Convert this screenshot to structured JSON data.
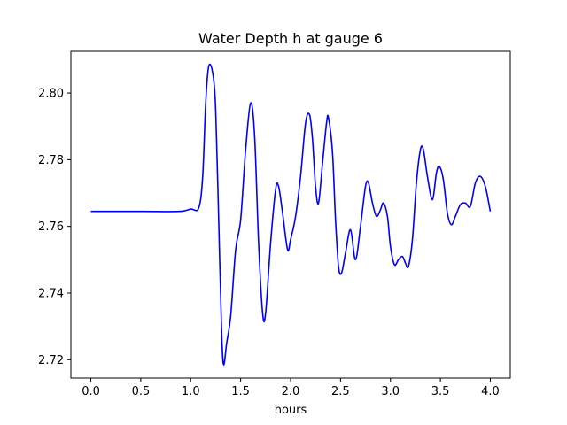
{
  "chart_data": {
    "type": "line",
    "title": "Water Depth h at gauge 6",
    "xlabel": "hours",
    "ylabel": "",
    "xlim": [
      -0.2,
      4.2
    ],
    "ylim": [
      2.7145,
      2.8125
    ],
    "xticks": [
      0.0,
      0.5,
      1.0,
      1.5,
      2.0,
      2.5,
      3.0,
      3.5,
      4.0
    ],
    "xtick_labels": [
      "0.0",
      "0.5",
      "1.0",
      "1.5",
      "2.0",
      "2.5",
      "3.0",
      "3.5",
      "4.0"
    ],
    "yticks": [
      2.72,
      2.74,
      2.76,
      2.78,
      2.8
    ],
    "ytick_labels": [
      "2.72",
      "2.74",
      "2.76",
      "2.78",
      "2.80"
    ],
    "grid": false,
    "series": [
      {
        "color": "#0000ff",
        "points": [
          [
            0.0,
            2.7645
          ],
          [
            0.5,
            2.7645
          ],
          [
            0.88,
            2.7645
          ],
          [
            1.0,
            2.7652
          ],
          [
            1.08,
            2.7655
          ],
          [
            1.12,
            2.775
          ],
          [
            1.15,
            2.797
          ],
          [
            1.18,
            2.808
          ],
          [
            1.22,
            2.806
          ],
          [
            1.25,
            2.795
          ],
          [
            1.28,
            2.762
          ],
          [
            1.31,
            2.728
          ],
          [
            1.33,
            2.7185
          ],
          [
            1.36,
            2.725
          ],
          [
            1.4,
            2.733
          ],
          [
            1.45,
            2.753
          ],
          [
            1.5,
            2.762
          ],
          [
            1.55,
            2.783
          ],
          [
            1.6,
            2.797
          ],
          [
            1.64,
            2.787
          ],
          [
            1.68,
            2.755
          ],
          [
            1.72,
            2.734
          ],
          [
            1.75,
            2.734
          ],
          [
            1.8,
            2.755
          ],
          [
            1.85,
            2.771
          ],
          [
            1.88,
            2.772
          ],
          [
            1.92,
            2.764
          ],
          [
            1.97,
            2.753
          ],
          [
            2.0,
            2.756
          ],
          [
            2.05,
            2.763
          ],
          [
            2.1,
            2.775
          ],
          [
            2.15,
            2.791
          ],
          [
            2.19,
            2.7935
          ],
          [
            2.22,
            2.786
          ],
          [
            2.25,
            2.772
          ],
          [
            2.28,
            2.767
          ],
          [
            2.32,
            2.779
          ],
          [
            2.36,
            2.791
          ],
          [
            2.38,
            2.7925
          ],
          [
            2.42,
            2.782
          ],
          [
            2.45,
            2.762
          ],
          [
            2.48,
            2.748
          ],
          [
            2.51,
            2.746
          ],
          [
            2.55,
            2.752
          ],
          [
            2.6,
            2.759
          ],
          [
            2.65,
            2.75
          ],
          [
            2.7,
            2.76
          ],
          [
            2.75,
            2.772
          ],
          [
            2.78,
            2.773
          ],
          [
            2.82,
            2.767
          ],
          [
            2.86,
            2.763
          ],
          [
            2.9,
            2.765
          ],
          [
            2.93,
            2.767
          ],
          [
            2.97,
            2.763
          ],
          [
            3.0,
            2.754
          ],
          [
            3.04,
            2.7485
          ],
          [
            3.08,
            2.75
          ],
          [
            3.12,
            2.751
          ],
          [
            3.15,
            2.749
          ],
          [
            3.18,
            2.748
          ],
          [
            3.22,
            2.756
          ],
          [
            3.26,
            2.773
          ],
          [
            3.3,
            2.783
          ],
          [
            3.33,
            2.783
          ],
          [
            3.37,
            2.775
          ],
          [
            3.42,
            2.768
          ],
          [
            3.46,
            2.776
          ],
          [
            3.49,
            2.778
          ],
          [
            3.53,
            2.774
          ],
          [
            3.57,
            2.764
          ],
          [
            3.61,
            2.7605
          ],
          [
            3.65,
            2.763
          ],
          [
            3.7,
            2.7665
          ],
          [
            3.75,
            2.767
          ],
          [
            3.8,
            2.766
          ],
          [
            3.85,
            2.773
          ],
          [
            3.9,
            2.775
          ],
          [
            3.95,
            2.772
          ],
          [
            4.0,
            2.7645
          ]
        ]
      }
    ]
  }
}
